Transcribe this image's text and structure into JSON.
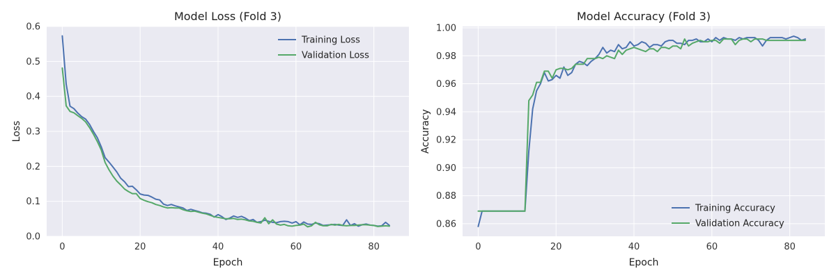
{
  "chart_data": [
    {
      "type": "line",
      "title": "Model Loss (Fold 3)",
      "xlabel": "Epoch",
      "ylabel": "Loss",
      "xlim": [
        -4,
        89
      ],
      "ylim": [
        0,
        0.6
      ],
      "xticks": [
        0,
        20,
        40,
        60,
        80
      ],
      "yticks": [
        0.0,
        0.1,
        0.2,
        0.3,
        0.4,
        0.5,
        0.6
      ],
      "ytick_decimals": 1,
      "grid": true,
      "legend": "top-right",
      "x": [
        0,
        1,
        2,
        3,
        4,
        5,
        6,
        7,
        8,
        9,
        10,
        11,
        12,
        13,
        14,
        15,
        16,
        17,
        18,
        19,
        20,
        21,
        22,
        23,
        24,
        25,
        26,
        27,
        28,
        29,
        30,
        31,
        32,
        33,
        34,
        35,
        36,
        37,
        38,
        39,
        40,
        41,
        42,
        43,
        44,
        45,
        46,
        47,
        48,
        49,
        50,
        51,
        52,
        53,
        54,
        55,
        56,
        57,
        58,
        59,
        60,
        61,
        62,
        63,
        64,
        65,
        66,
        67,
        68,
        69,
        70,
        71,
        72,
        73,
        74,
        75,
        76,
        77,
        78,
        79,
        80,
        81,
        82,
        83,
        84
      ],
      "series": [
        {
          "name": "Training Loss",
          "color": "#4C72B0",
          "values": [
            0.573,
            0.435,
            0.372,
            0.365,
            0.352,
            0.342,
            0.335,
            0.32,
            0.3,
            0.282,
            0.256,
            0.225,
            0.212,
            0.198,
            0.184,
            0.166,
            0.156,
            0.142,
            0.143,
            0.133,
            0.121,
            0.118,
            0.117,
            0.112,
            0.106,
            0.104,
            0.092,
            0.088,
            0.091,
            0.087,
            0.084,
            0.081,
            0.074,
            0.077,
            0.074,
            0.071,
            0.067,
            0.066,
            0.063,
            0.055,
            0.062,
            0.056,
            0.048,
            0.052,
            0.058,
            0.054,
            0.057,
            0.052,
            0.045,
            0.048,
            0.04,
            0.042,
            0.046,
            0.043,
            0.04,
            0.039,
            0.042,
            0.043,
            0.042,
            0.038,
            0.042,
            0.033,
            0.041,
            0.035,
            0.034,
            0.038,
            0.036,
            0.031,
            0.032,
            0.033,
            0.034,
            0.032,
            0.031,
            0.047,
            0.031,
            0.036,
            0.029,
            0.033,
            0.035,
            0.032,
            0.031,
            0.029,
            0.03,
            0.04,
            0.031
          ]
        },
        {
          "name": "Validation Loss",
          "color": "#55A868",
          "values": [
            0.481,
            0.373,
            0.357,
            0.353,
            0.345,
            0.337,
            0.327,
            0.311,
            0.292,
            0.271,
            0.247,
            0.211,
            0.19,
            0.172,
            0.158,
            0.147,
            0.135,
            0.128,
            0.122,
            0.122,
            0.108,
            0.103,
            0.099,
            0.096,
            0.091,
            0.088,
            0.084,
            0.081,
            0.082,
            0.081,
            0.081,
            0.076,
            0.073,
            0.071,
            0.072,
            0.069,
            0.066,
            0.064,
            0.06,
            0.056,
            0.054,
            0.052,
            0.05,
            0.05,
            0.051,
            0.048,
            0.049,
            0.047,
            0.044,
            0.043,
            0.04,
            0.038,
            0.053,
            0.036,
            0.047,
            0.035,
            0.032,
            0.034,
            0.03,
            0.029,
            0.031,
            0.032,
            0.035,
            0.027,
            0.03,
            0.04,
            0.033,
            0.03,
            0.03,
            0.034,
            0.032,
            0.034,
            0.031,
            0.03,
            0.031,
            0.031,
            0.032,
            0.033,
            0.033,
            0.032,
            0.031,
            0.028,
            0.029,
            0.03,
            0.029
          ]
        }
      ]
    },
    {
      "type": "line",
      "title": "Model Accuracy (Fold 3)",
      "xlabel": "Epoch",
      "ylabel": "Accuracy",
      "xlim": [
        -4,
        89
      ],
      "ylim": [
        0.851,
        1.001
      ],
      "xticks": [
        0,
        20,
        40,
        60,
        80
      ],
      "yticks": [
        0.86,
        0.88,
        0.9,
        0.92,
        0.94,
        0.96,
        0.98,
        1.0
      ],
      "ytick_decimals": 2,
      "grid": true,
      "legend": "bottom-right",
      "x": [
        0,
        1,
        2,
        3,
        4,
        5,
        6,
        7,
        8,
        9,
        10,
        11,
        12,
        13,
        14,
        15,
        16,
        17,
        18,
        19,
        20,
        21,
        22,
        23,
        24,
        25,
        26,
        27,
        28,
        29,
        30,
        31,
        32,
        33,
        34,
        35,
        36,
        37,
        38,
        39,
        40,
        41,
        42,
        43,
        44,
        45,
        46,
        47,
        48,
        49,
        50,
        51,
        52,
        53,
        54,
        55,
        56,
        57,
        58,
        59,
        60,
        61,
        62,
        63,
        64,
        65,
        66,
        67,
        68,
        69,
        70,
        71,
        72,
        73,
        74,
        75,
        76,
        77,
        78,
        79,
        80,
        81,
        82,
        83,
        84
      ],
      "series": [
        {
          "name": "Training Accuracy",
          "color": "#4C72B0",
          "values": [
            0.858,
            0.869,
            0.869,
            0.869,
            0.869,
            0.869,
            0.869,
            0.869,
            0.869,
            0.869,
            0.869,
            0.869,
            0.869,
            0.912,
            0.942,
            0.955,
            0.96,
            0.968,
            0.962,
            0.963,
            0.966,
            0.964,
            0.972,
            0.966,
            0.968,
            0.974,
            0.976,
            0.975,
            0.973,
            0.976,
            0.978,
            0.981,
            0.986,
            0.982,
            0.984,
            0.983,
            0.988,
            0.985,
            0.986,
            0.99,
            0.987,
            0.988,
            0.99,
            0.989,
            0.986,
            0.988,
            0.988,
            0.987,
            0.99,
            0.991,
            0.991,
            0.989,
            0.989,
            0.988,
            0.991,
            0.991,
            0.992,
            0.99,
            0.99,
            0.992,
            0.99,
            0.993,
            0.991,
            0.993,
            0.992,
            0.992,
            0.991,
            0.993,
            0.992,
            0.993,
            0.993,
            0.993,
            0.991,
            0.987,
            0.991,
            0.993,
            0.993,
            0.993,
            0.993,
            0.992,
            0.993,
            0.994,
            0.993,
            0.991,
            0.992
          ]
        },
        {
          "name": "Validation Accuracy",
          "color": "#55A868",
          "values": [
            0.869,
            0.869,
            0.869,
            0.869,
            0.869,
            0.869,
            0.869,
            0.869,
            0.869,
            0.869,
            0.869,
            0.869,
            0.869,
            0.948,
            0.952,
            0.961,
            0.961,
            0.969,
            0.969,
            0.964,
            0.97,
            0.971,
            0.971,
            0.97,
            0.971,
            0.974,
            0.974,
            0.974,
            0.978,
            0.978,
            0.978,
            0.979,
            0.978,
            0.98,
            0.979,
            0.978,
            0.984,
            0.981,
            0.984,
            0.985,
            0.986,
            0.985,
            0.984,
            0.983,
            0.985,
            0.985,
            0.983,
            0.986,
            0.986,
            0.985,
            0.987,
            0.987,
            0.985,
            0.992,
            0.987,
            0.989,
            0.99,
            0.991,
            0.99,
            0.99,
            0.991,
            0.991,
            0.989,
            0.992,
            0.992,
            0.992,
            0.988,
            0.991,
            0.992,
            0.992,
            0.99,
            0.992,
            0.992,
            0.992,
            0.991,
            0.991,
            0.991,
            0.991,
            0.991,
            0.991,
            0.991,
            0.991,
            0.991,
            0.991,
            0.991
          ]
        }
      ]
    }
  ]
}
